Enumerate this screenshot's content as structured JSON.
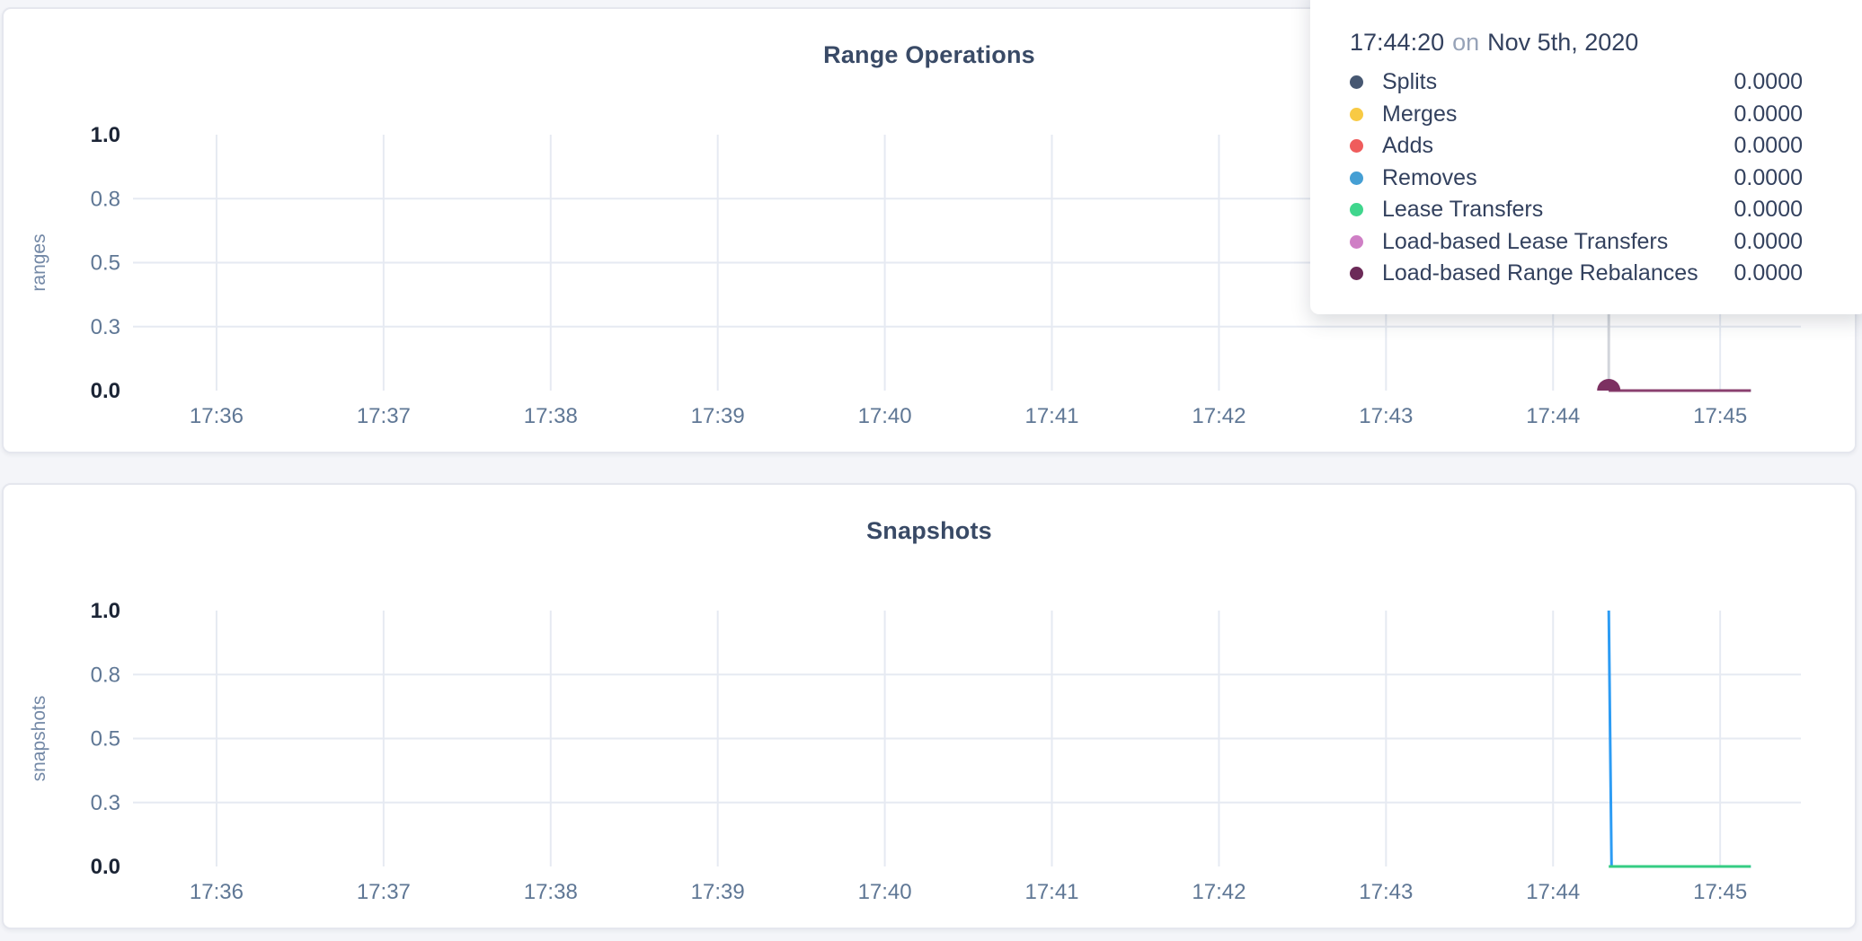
{
  "colors": {
    "page_bg": "#f4f5f9",
    "card_bg": "#ffffff",
    "card_border": "#e5e7ee",
    "chart_title_text": "#394a66",
    "tick_strong": "#1b2435",
    "tick_muted": "#5f7795",
    "axis_unit_text": "#7388a6",
    "gridline": "#e6eaf2",
    "hover_crosshair": "#d2d5db",
    "tooltip_text": "#33415e",
    "tooltip_connector_text": "#97a3b8"
  },
  "tooltip": {
    "time": "17:44:20",
    "connector": "on",
    "date": "Nov 5th, 2020",
    "rows": [
      {
        "label": "Splits",
        "value": "0.0000",
        "color": "#475872"
      },
      {
        "label": "Merges",
        "value": "0.0000",
        "color": "#f8ca44"
      },
      {
        "label": "Adds",
        "value": "0.0000",
        "color": "#ef5c5c"
      },
      {
        "label": "Removes",
        "value": "0.0000",
        "color": "#459fd4"
      },
      {
        "label": "Lease Transfers",
        "value": "0.0000",
        "color": "#40d68d"
      },
      {
        "label": "Load-based Lease Transfers",
        "value": "0.0000",
        "color": "#cf7fc5"
      },
      {
        "label": "Load-based Range Rebalances",
        "value": "0.0000",
        "color": "#6c2a58"
      }
    ]
  },
  "chart_data": [
    {
      "type": "line",
      "title": "Range Operations",
      "xlabel": "",
      "ylabel": "ranges",
      "ylim": [
        0,
        1
      ],
      "grid": true,
      "x_domain": [
        "17:35:30",
        "17:45:29"
      ],
      "x_ticks": [
        "17:36",
        "17:37",
        "17:38",
        "17:39",
        "17:40",
        "17:41",
        "17:42",
        "17:43",
        "17:44",
        "17:45"
      ],
      "y_ticks": [
        {
          "label": "1.0",
          "f": 1,
          "strong": true
        },
        {
          "label": "0.8",
          "f": 0.75,
          "strong": false
        },
        {
          "label": "0.5",
          "f": 0.5,
          "strong": false
        },
        {
          "label": "0.3",
          "f": 0.25,
          "strong": false
        },
        {
          "label": "0.0",
          "f": 0,
          "strong": true
        }
      ],
      "series": [
        {
          "name": "Splits",
          "color": "#475872",
          "points": [
            [
              "17:44:20",
              0
            ],
            [
              "17:45:11",
              0
            ]
          ]
        },
        {
          "name": "Merges",
          "color": "#f8ca44",
          "points": [
            [
              "17:44:20",
              0
            ],
            [
              "17:45:11",
              0
            ]
          ]
        },
        {
          "name": "Adds",
          "color": "#ef5c5c",
          "points": [
            [
              "17:44:20",
              0
            ],
            [
              "17:45:11",
              0
            ]
          ]
        },
        {
          "name": "Removes",
          "color": "#459fd4",
          "points": [
            [
              "17:44:20",
              0
            ],
            [
              "17:45:11",
              0
            ]
          ]
        },
        {
          "name": "Lease Transfers",
          "color": "#40d68d",
          "points": [
            [
              "17:44:20",
              0
            ],
            [
              "17:45:11",
              0
            ]
          ]
        },
        {
          "name": "Load-based Lease Transfers",
          "color": "#cf7fc5",
          "points": [
            [
              "17:44:20",
              0
            ],
            [
              "17:45:11",
              0
            ]
          ]
        },
        {
          "name": "Load-based Range Rebalances",
          "color": "#8a406f",
          "points": [
            [
              "17:44:20",
              0
            ],
            [
              "17:45:11",
              0
            ]
          ]
        }
      ],
      "hover": {
        "time": "17:44:20",
        "value": 0,
        "dot_color": "#7c3061",
        "crosshair_color": "#d2d5db"
      }
    },
    {
      "type": "line",
      "title": "Snapshots",
      "xlabel": "",
      "ylabel": "snapshots",
      "ylim": [
        0,
        1
      ],
      "grid": true,
      "x_domain": [
        "17:35:30",
        "17:45:29"
      ],
      "x_ticks": [
        "17:36",
        "17:37",
        "17:38",
        "17:39",
        "17:40",
        "17:41",
        "17:42",
        "17:43",
        "17:44",
        "17:45"
      ],
      "y_ticks": [
        {
          "label": "1.0",
          "f": 1,
          "strong": true
        },
        {
          "label": "0.8",
          "f": 0.75,
          "strong": false
        },
        {
          "label": "0.5",
          "f": 0.5,
          "strong": false
        },
        {
          "label": "0.3",
          "f": 0.25,
          "strong": false
        },
        {
          "label": "0.0",
          "f": 0,
          "strong": true
        }
      ],
      "series": [
        {
          "name": "",
          "color": "#2d9cf4",
          "points": [
            [
              "17:44:20",
              1
            ],
            [
              "17:44:21",
              0
            ],
            [
              "17:45:11",
              0
            ]
          ]
        },
        {
          "name": "",
          "color": "#35cc83",
          "points": [
            [
              "17:44:20",
              0
            ],
            [
              "17:45:11",
              0
            ]
          ]
        }
      ]
    }
  ]
}
